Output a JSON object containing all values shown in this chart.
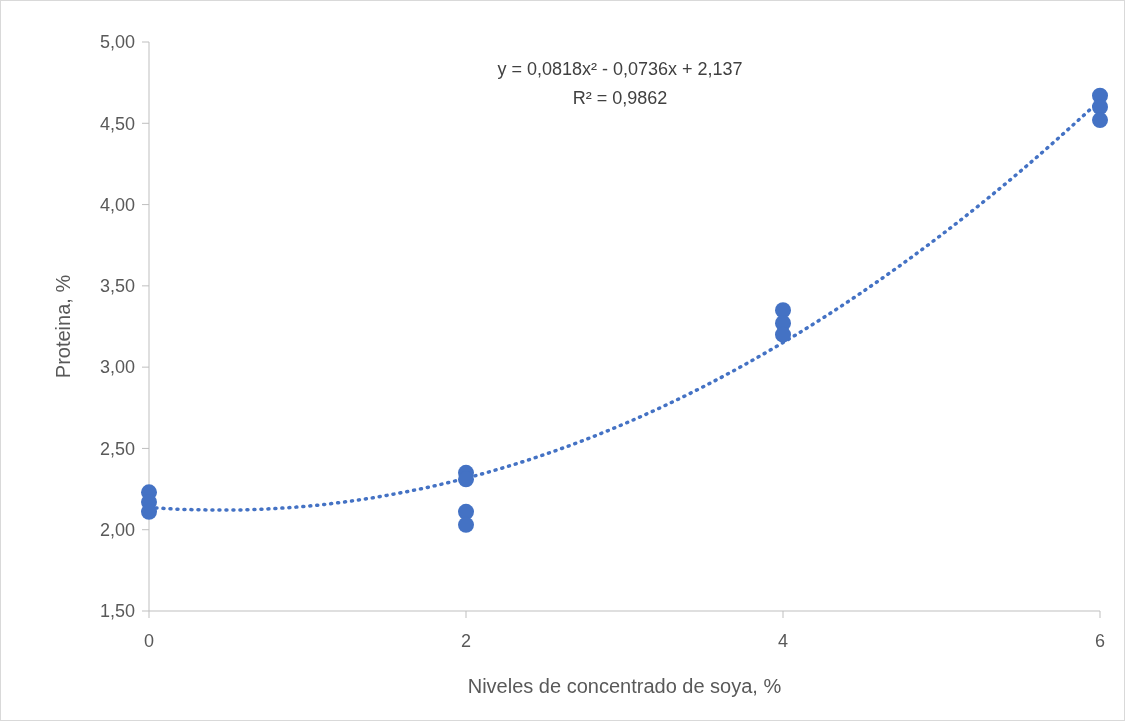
{
  "chart_data": {
    "type": "scatter",
    "xlabel": "Niveles de concentrado de soya, %",
    "ylabel": "Proteina, %",
    "annotations": [
      "y = 0,0818x² - 0,0736x + 2,137",
      "R² = 0,9862"
    ],
    "xlim": [
      0,
      6
    ],
    "xticks": [
      0,
      2,
      4,
      6
    ],
    "ylim": [
      1.5,
      5
    ],
    "yticks": [
      {
        "value": 1.5,
        "label": "1,50"
      },
      {
        "value": 2,
        "label": "2,00"
      },
      {
        "value": 2.5,
        "label": "2,50"
      },
      {
        "value": 3,
        "label": "3,00"
      },
      {
        "value": 3.5,
        "label": "3,50"
      },
      {
        "value": 4,
        "label": "4,00"
      },
      {
        "value": 4.5,
        "label": "4,50"
      },
      {
        "value": 5,
        "label": "5,00"
      }
    ],
    "grid": false,
    "marker": "circle",
    "series": [
      {
        "color": "#4472c4",
        "x": [
          0,
          0,
          0,
          2,
          2,
          2,
          2,
          4,
          4,
          4,
          6,
          6,
          6
        ],
        "values": [
          2.23,
          2.17,
          2.11,
          2.35,
          2.31,
          2.11,
          2.03,
          3.35,
          3.27,
          3.2,
          4.67,
          4.6,
          4.52
        ]
      },
      {
        "type": "line",
        "color": "#4472c4",
        "line_style": "dotted",
        "marker": "none",
        "x": [
          0,
          0.25,
          0.5,
          0.75,
          1,
          1.5,
          2,
          2.5,
          3,
          3.5,
          4,
          4.5,
          5,
          5.5,
          6
        ],
        "values": [
          2.137,
          2.124,
          2.121,
          2.128,
          2.145,
          2.211,
          2.317,
          2.464,
          2.652,
          2.881,
          3.151,
          3.462,
          3.814,
          4.207,
          4.64
        ]
      }
    ]
  }
}
